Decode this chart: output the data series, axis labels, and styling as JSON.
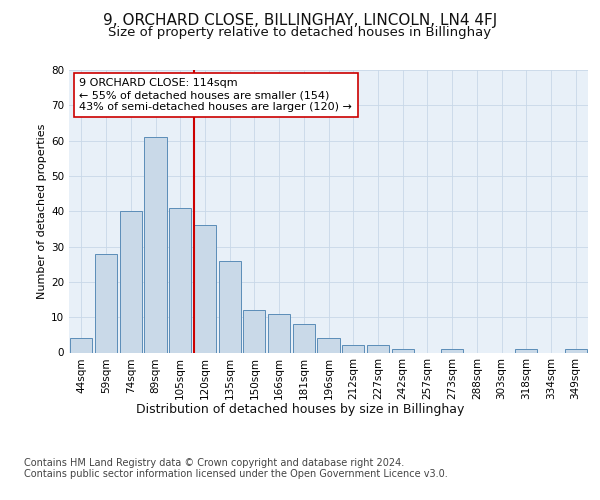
{
  "title": "9, ORCHARD CLOSE, BILLINGHAY, LINCOLN, LN4 4FJ",
  "subtitle": "Size of property relative to detached houses in Billinghay",
  "xlabel": "Distribution of detached houses by size in Billinghay",
  "ylabel": "Number of detached properties",
  "bar_labels": [
    "44sqm",
    "59sqm",
    "74sqm",
    "89sqm",
    "105sqm",
    "120sqm",
    "135sqm",
    "150sqm",
    "166sqm",
    "181sqm",
    "196sqm",
    "212sqm",
    "227sqm",
    "242sqm",
    "257sqm",
    "273sqm",
    "288sqm",
    "303sqm",
    "318sqm",
    "334sqm",
    "349sqm"
  ],
  "bar_values": [
    4,
    28,
    40,
    61,
    41,
    36,
    26,
    12,
    11,
    8,
    4,
    2,
    2,
    1,
    0,
    1,
    0,
    0,
    1,
    0,
    1
  ],
  "bar_color": "#c9d9e8",
  "bar_edgecolor": "#5b8db8",
  "vline_color": "#cc0000",
  "annotation_text": "9 ORCHARD CLOSE: 114sqm\n← 55% of detached houses are smaller (154)\n43% of semi-detached houses are larger (120) →",
  "annotation_box_edgecolor": "#cc0000",
  "annotation_box_facecolor": "#ffffff",
  "ylim": [
    0,
    80
  ],
  "yticks": [
    0,
    10,
    20,
    30,
    40,
    50,
    60,
    70,
    80
  ],
  "grid_color": "#c8d8e8",
  "plot_bg_color": "#e8f0f8",
  "footer_text": "Contains HM Land Registry data © Crown copyright and database right 2024.\nContains public sector information licensed under the Open Government Licence v3.0.",
  "title_fontsize": 11,
  "subtitle_fontsize": 9.5,
  "annotation_fontsize": 8,
  "footer_fontsize": 7,
  "ylabel_fontsize": 8,
  "xlabel_fontsize": 9,
  "tick_fontsize": 7.5
}
